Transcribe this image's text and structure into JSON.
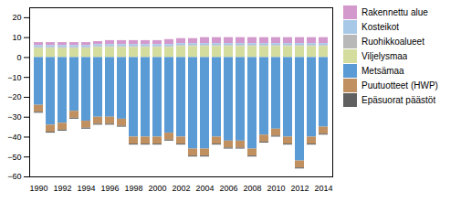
{
  "chart_data": {
    "type": "bar",
    "stacked": true,
    "grid": false,
    "legend": "right",
    "categories": [
      "1990",
      null,
      "1992",
      null,
      "1994",
      null,
      "1996",
      null,
      "1998",
      null,
      "2000",
      null,
      "2002",
      null,
      "2004",
      null,
      "2006",
      null,
      "2008",
      null,
      "2010",
      null,
      "2012",
      null,
      "2014"
    ],
    "series": [
      {
        "name": "Rakennettu alue",
        "color": "#d499cc",
        "values": [
          1.5,
          1.5,
          1.5,
          1.5,
          1.5,
          1.5,
          2.0,
          2.0,
          2.0,
          2.0,
          2.0,
          2.5,
          2.5,
          2.5,
          3.0,
          3.0,
          3.0,
          3.0,
          3.0,
          3.0,
          3.0,
          3.0,
          3.0,
          3.0,
          3.0
        ]
      },
      {
        "name": "Kosteikot",
        "color": "#a8c8e8",
        "values": [
          1.0,
          1.0,
          1.0,
          1.0,
          1.0,
          1.0,
          1.0,
          1.0,
          1.0,
          1.0,
          1.0,
          1.0,
          1.0,
          1.0,
          1.0,
          1.0,
          1.0,
          1.0,
          1.0,
          1.0,
          1.0,
          1.0,
          1.0,
          1.0,
          1.0
        ]
      },
      {
        "name": "Ruohikkoalueet",
        "color": "#b8b8b8",
        "values": [
          0.5,
          0.5,
          0.5,
          0.5,
          0.5,
          0.5,
          0.5,
          0.5,
          0.5,
          0.5,
          0.5,
          0.5,
          0.5,
          0.5,
          0.5,
          0.5,
          0.5,
          0.5,
          0.5,
          0.5,
          0.5,
          0.5,
          0.5,
          0.5,
          0.5
        ]
      },
      {
        "name": "Viljelysmaa",
        "color": "#d4dd9e",
        "values": [
          4.5,
          4.5,
          4.5,
          4.5,
          4.5,
          5.0,
          5.0,
          5.0,
          5.0,
          5.0,
          5.0,
          5.0,
          5.5,
          5.5,
          5.5,
          5.5,
          5.5,
          5.5,
          5.5,
          5.5,
          5.5,
          5.5,
          5.5,
          5.5,
          5.5
        ]
      },
      {
        "name": "Metsämaa",
        "color": "#5b9bd5",
        "values": [
          -24,
          -34,
          -33,
          -27,
          -32,
          -30,
          -30,
          -31,
          -40,
          -40,
          -40,
          -38,
          -40,
          -46,
          -46,
          -40,
          -42,
          -42,
          -46,
          -39,
          -36,
          -40,
          -52,
          -40,
          -35
        ]
      },
      {
        "name": "Puutuotteet (HWP)",
        "color": "#c09060",
        "values": [
          -3.5,
          -3.5,
          -3.5,
          -3.5,
          -3.5,
          -3.5,
          -3.5,
          -3.5,
          -3.5,
          -3.5,
          -3.5,
          -3.5,
          -3.5,
          -3.5,
          -3.5,
          -3.5,
          -3.5,
          -3.5,
          -3.5,
          -3.5,
          -3.5,
          -3.5,
          -3.5,
          -3.5,
          -3.5
        ]
      },
      {
        "name": "Epäsuorat päästöt",
        "color": "#606060",
        "values": [
          -0.5,
          -0.5,
          -0.5,
          -0.5,
          -0.5,
          -0.5,
          -0.5,
          -0.5,
          -0.5,
          -0.5,
          -0.5,
          -0.5,
          -0.5,
          -0.5,
          -0.5,
          -0.5,
          -0.5,
          -0.5,
          -0.5,
          -0.5,
          -0.5,
          -0.5,
          -0.5,
          -0.5,
          -0.5
        ]
      }
    ],
    "ylim": [
      -60,
      25
    ],
    "yticks": [
      -60,
      -50,
      -40,
      -30,
      -20,
      -10,
      0,
      10,
      20
    ]
  }
}
